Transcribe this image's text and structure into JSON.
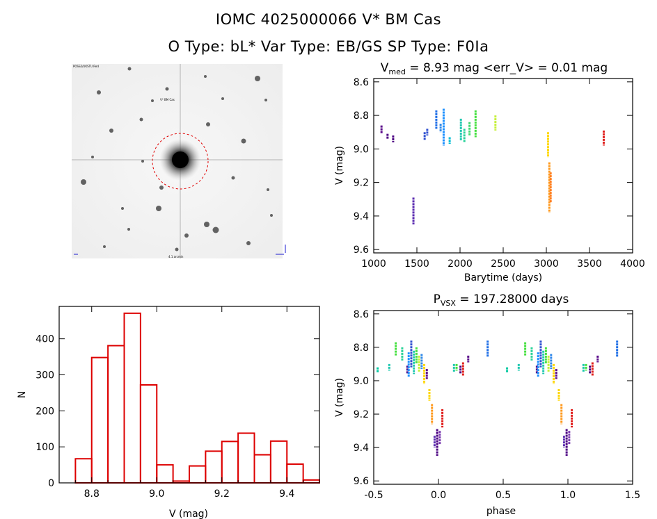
{
  "header": {
    "title_line1": "IOMC 4025000066   V* BM Cas",
    "title_line2": "O Type: bL*  Var Type: EB/GS  SP Type: F0Ia"
  },
  "image_panel": {
    "label_top_left": "POSS2/UKSTU Red",
    "label_target": "V* BM Cas",
    "label_bottom": "4.1 arcmin"
  },
  "chart_data": [
    {
      "type": "scatter",
      "title_parts": {
        "prefix": "V",
        "subscript": "med",
        "rest": " = 8.93 mag <err_V> = 0.01 mag"
      },
      "xlabel": "Barytime (days)",
      "ylabel": "V (mag)",
      "xlim": [
        1000,
        4000
      ],
      "ylim": [
        9.62,
        8.58
      ],
      "xticks": [
        1000,
        1500,
        2000,
        2500,
        3000,
        3500,
        4000
      ],
      "yticks": [
        8.6,
        8.8,
        9.0,
        9.2,
        9.4,
        9.6
      ],
      "color_scale": "rainbow (violet → red) by time",
      "segments": [
        {
          "x": 1090,
          "y1": 8.86,
          "y2": 8.91,
          "color": "#5a0a8a"
        },
        {
          "x": 1160,
          "y1": 8.91,
          "y2": 8.94,
          "color": "#4b0082"
        },
        {
          "x": 1225,
          "y1": 8.92,
          "y2": 8.96,
          "color": "#4b0082"
        },
        {
          "x": 1460,
          "y1": 9.29,
          "y2": 9.45,
          "color": "#5a2ab0"
        },
        {
          "x": 1590,
          "y1": 8.9,
          "y2": 8.95,
          "color": "#3050d0"
        },
        {
          "x": 1620,
          "y1": 8.88,
          "y2": 8.92,
          "color": "#3050d0"
        },
        {
          "x": 1725,
          "y1": 8.77,
          "y2": 8.88,
          "color": "#1e6ee6"
        },
        {
          "x": 1775,
          "y1": 8.85,
          "y2": 8.9,
          "color": "#2f87e8"
        },
        {
          "x": 1810,
          "y1": 8.76,
          "y2": 8.98,
          "color": "#1e90ff"
        },
        {
          "x": 1880,
          "y1": 8.93,
          "y2": 8.97,
          "color": "#00bcd4"
        },
        {
          "x": 2010,
          "y1": 8.82,
          "y2": 8.95,
          "color": "#20c8b0"
        },
        {
          "x": 2050,
          "y1": 8.88,
          "y2": 8.96,
          "color": "#2bd39a"
        },
        {
          "x": 2110,
          "y1": 8.84,
          "y2": 8.92,
          "color": "#40d870"
        },
        {
          "x": 2180,
          "y1": 8.77,
          "y2": 8.93,
          "color": "#46e040"
        },
        {
          "x": 2410,
          "y1": 8.8,
          "y2": 8.89,
          "color": "#c5f03a"
        },
        {
          "x": 3020,
          "y1": 8.9,
          "y2": 9.05,
          "color": "#ffd700"
        },
        {
          "x": 3035,
          "y1": 9.08,
          "y2": 9.38,
          "color": "#ff9a1e"
        },
        {
          "x": 3050,
          "y1": 9.14,
          "y2": 9.32,
          "color": "#ff7d1e"
        },
        {
          "x": 3665,
          "y1": 8.89,
          "y2": 8.98,
          "color": "#e0201e"
        }
      ]
    },
    {
      "type": "bar",
      "xlabel": "V (mag)",
      "ylabel": "N",
      "xlim": [
        8.7,
        9.5
      ],
      "ylim": [
        0,
        490
      ],
      "xticks": [
        8.8,
        9.0,
        9.2,
        9.4
      ],
      "yticks": [
        0,
        100,
        200,
        300,
        400
      ],
      "bin_width": 0.05,
      "bin_starts": [
        8.75,
        8.8,
        8.85,
        8.9,
        8.95,
        9.0,
        9.05,
        9.1,
        9.15,
        9.2,
        9.25,
        9.3,
        9.35,
        9.4,
        9.45
      ],
      "values": [
        67,
        348,
        381,
        471,
        272,
        50,
        5,
        47,
        88,
        115,
        138,
        78,
        116,
        52,
        8
      ],
      "color": "#dd0000"
    },
    {
      "type": "scatter",
      "title_parts": {
        "prefix": "P",
        "subscript": "VSX",
        "rest": " = 197.28000 days"
      },
      "xlabel": "phase",
      "ylabel": "V (mag)",
      "xlim": [
        -0.5,
        1.5
      ],
      "ylim": [
        9.62,
        8.58
      ],
      "xticks": [
        -0.5,
        0.0,
        0.5,
        1.0,
        1.5
      ],
      "yticks": [
        8.6,
        8.8,
        9.0,
        9.2,
        9.4,
        9.6
      ],
      "segments": [
        {
          "x": -0.47,
          "y1": 8.92,
          "y2": 8.95,
          "color": "#00c8a0"
        },
        {
          "x": -0.38,
          "y1": 8.9,
          "y2": 8.94,
          "color": "#20c8b0"
        },
        {
          "x": -0.33,
          "y1": 8.77,
          "y2": 8.85,
          "color": "#46e040"
        },
        {
          "x": -0.28,
          "y1": 8.8,
          "y2": 8.88,
          "color": "#2bd39a"
        },
        {
          "x": -0.24,
          "y1": 8.91,
          "y2": 8.96,
          "color": "#4b0082"
        },
        {
          "x": -0.23,
          "y1": 8.83,
          "y2": 8.98,
          "color": "#1e90ff"
        },
        {
          "x": -0.21,
          "y1": 8.76,
          "y2": 8.92,
          "color": "#3050d0"
        },
        {
          "x": -0.19,
          "y1": 8.82,
          "y2": 8.96,
          "color": "#20c8b0"
        },
        {
          "x": -0.17,
          "y1": 8.8,
          "y2": 8.9,
          "color": "#46e040"
        },
        {
          "x": -0.15,
          "y1": 8.85,
          "y2": 8.95,
          "color": "#c5f03a"
        },
        {
          "x": -0.13,
          "y1": 8.84,
          "y2": 8.93,
          "color": "#2f87e8"
        },
        {
          "x": -0.11,
          "y1": 8.9,
          "y2": 9.02,
          "color": "#ffd700"
        },
        {
          "x": -0.09,
          "y1": 8.93,
          "y2": 8.99,
          "color": "#5a0a8a"
        },
        {
          "x": -0.07,
          "y1": 9.05,
          "y2": 9.12,
          "color": "#ffd700"
        },
        {
          "x": -0.05,
          "y1": 9.14,
          "y2": 9.26,
          "color": "#ff9a1e"
        },
        {
          "x": -0.03,
          "y1": 9.33,
          "y2": 9.4,
          "color": "#5a2ab0"
        },
        {
          "x": -0.01,
          "y1": 9.29,
          "y2": 9.45,
          "color": "#4b0082"
        },
        {
          "x": 0.01,
          "y1": 9.3,
          "y2": 9.38,
          "color": "#7a3ab0"
        },
        {
          "x": 0.03,
          "y1": 9.17,
          "y2": 9.28,
          "color": "#e0201e"
        },
        {
          "x": 0.12,
          "y1": 8.9,
          "y2": 8.95,
          "color": "#20c8b0"
        },
        {
          "x": 0.14,
          "y1": 8.9,
          "y2": 8.94,
          "color": "#46e040"
        },
        {
          "x": 0.17,
          "y1": 8.91,
          "y2": 8.96,
          "color": "#4b0082"
        },
        {
          "x": 0.19,
          "y1": 8.89,
          "y2": 8.97,
          "color": "#e0201e"
        },
        {
          "x": 0.23,
          "y1": 8.85,
          "y2": 8.89,
          "color": "#5a0a8a"
        },
        {
          "x": 0.38,
          "y1": 8.76,
          "y2": 8.86,
          "color": "#1e6ee6"
        }
      ]
    }
  ]
}
